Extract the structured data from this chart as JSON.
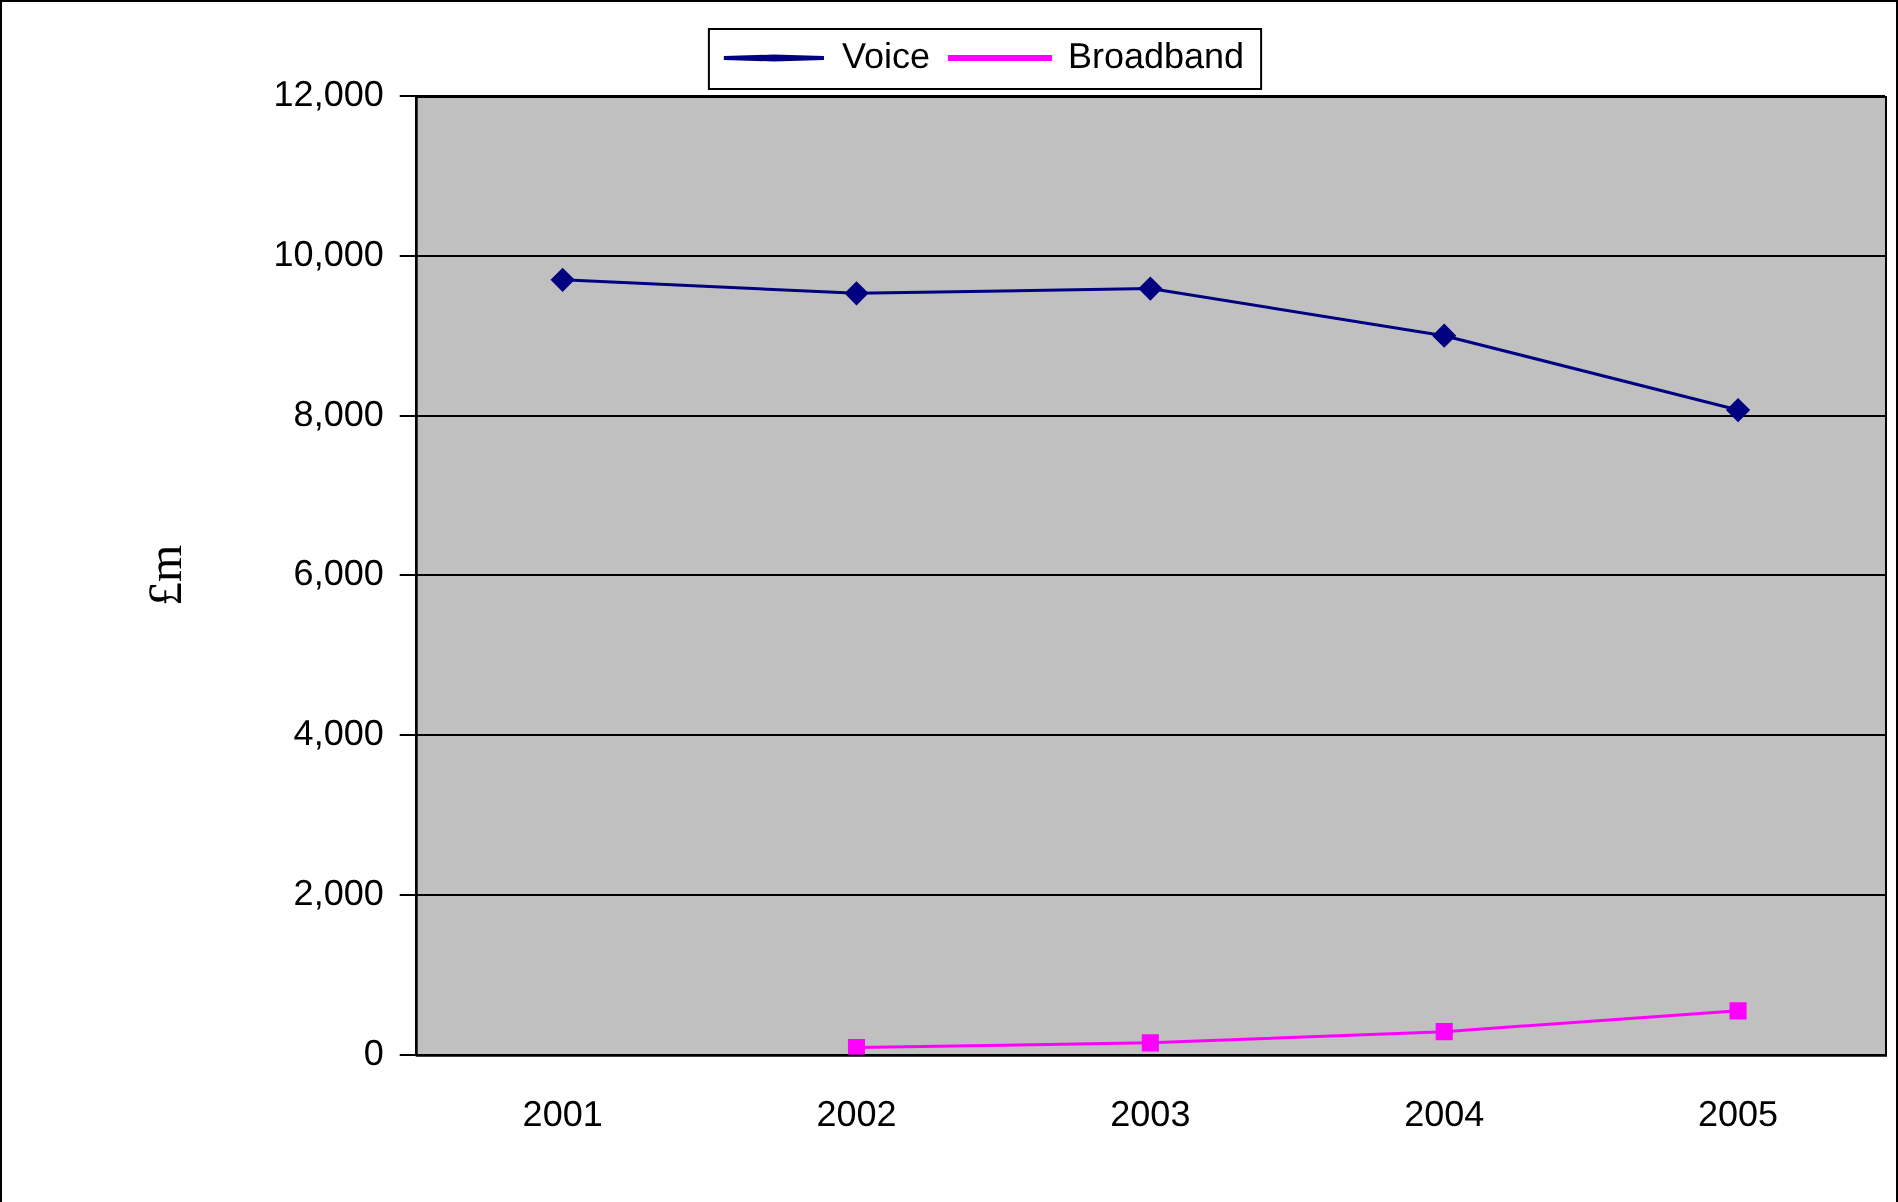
{
  "chart_data": {
    "type": "line",
    "ylabel": "£m",
    "categories": [
      "2001",
      "2002",
      "2003",
      "2004",
      "2005"
    ],
    "series": [
      {
        "name": "Voice",
        "color": "#000080",
        "marker": "diamond",
        "values": [
          9700,
          9530,
          9590,
          9000,
          8070
        ]
      },
      {
        "name": "Broadband",
        "color": "#ff00ff",
        "marker": "square",
        "values": [
          null,
          90,
          150,
          290,
          550
        ]
      }
    ],
    "ylim": [
      0,
      12000
    ],
    "yticks": [
      0,
      {
        "value": 2000,
        "label": "2,000"
      },
      {
        "value": 4000,
        "label": "4,000"
      },
      {
        "value": 6000,
        "label": "6,000"
      },
      {
        "value": 8000,
        "label": "8,000"
      },
      {
        "value": 10000,
        "label": "10,000"
      },
      {
        "value": 12000,
        "label": "12,000"
      }
    ],
    "grid": "y",
    "legend": "top"
  }
}
